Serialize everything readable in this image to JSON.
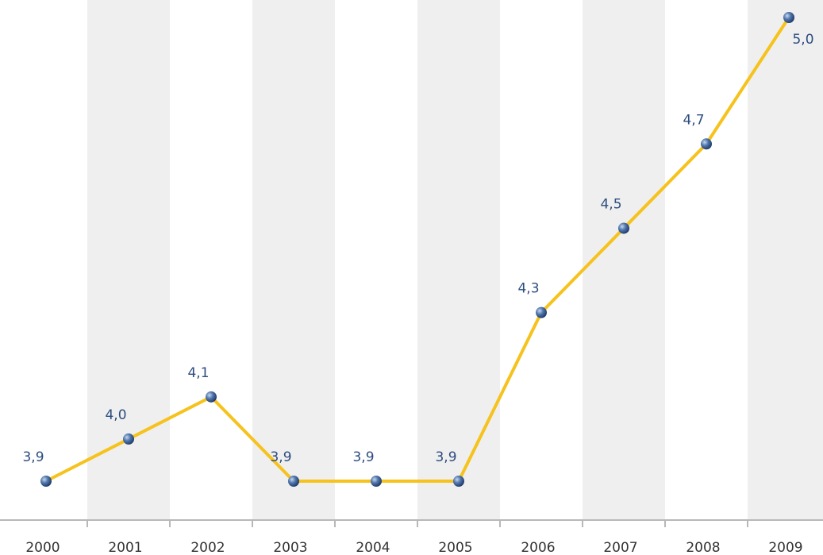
{
  "chart_data": {
    "type": "line",
    "categories": [
      "2000",
      "2001",
      "2002",
      "2003",
      "2004",
      "2005",
      "2006",
      "2007",
      "2008",
      "2009"
    ],
    "series": [
      {
        "color": "#f6c21c",
        "values": [
          3.9,
          4.0,
          4.1,
          3.9,
          3.9,
          3.9,
          4.3,
          4.5,
          4.7,
          5.0
        ],
        "value_labels": [
          "3,9",
          "4,0",
          "4,1",
          "3,9",
          "3,9",
          "3,9",
          "4,3",
          "4,5",
          "4,7",
          "5,0"
        ]
      }
    ]
  }
}
